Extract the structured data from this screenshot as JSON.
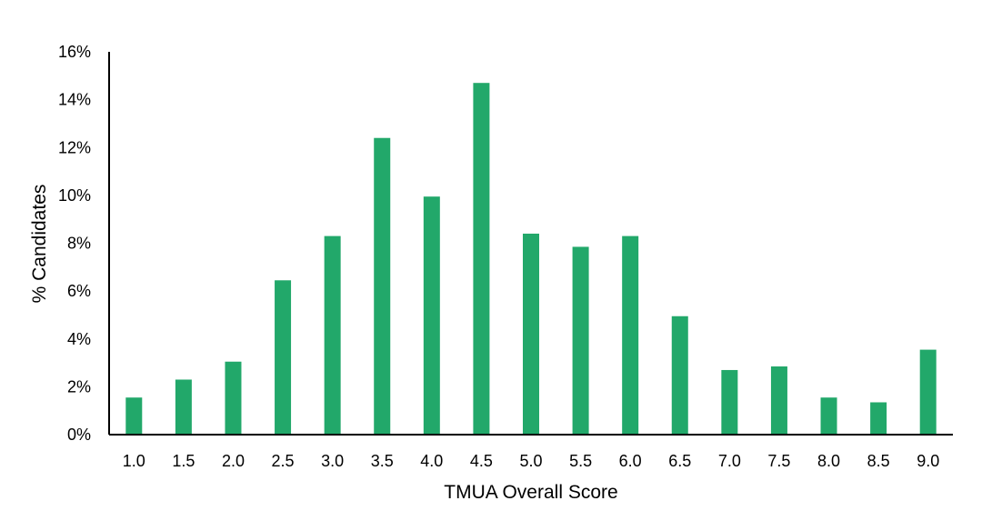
{
  "chart_data": {
    "type": "bar",
    "title": "",
    "xlabel": "TMUA Overall Score",
    "ylabel": "% Candidates",
    "categories": [
      "1.0",
      "1.5",
      "2.0",
      "2.5",
      "3.0",
      "3.5",
      "4.0",
      "4.5",
      "5.0",
      "5.5",
      "6.0",
      "6.5",
      "7.0",
      "7.5",
      "8.0",
      "8.5",
      "9.0"
    ],
    "values": [
      1.55,
      2.3,
      3.05,
      6.45,
      8.3,
      12.4,
      9.95,
      14.7,
      8.4,
      7.85,
      8.3,
      4.95,
      2.7,
      2.85,
      1.55,
      1.35,
      3.55
    ],
    "ylim": [
      0,
      16
    ],
    "yticks": [
      "0%",
      "2%",
      "4%",
      "6%",
      "8%",
      "10%",
      "12%",
      "14%",
      "16%"
    ],
    "grid": false,
    "legend": "none",
    "colors": {
      "bar": "#22a86a",
      "axis": "#000000"
    }
  }
}
